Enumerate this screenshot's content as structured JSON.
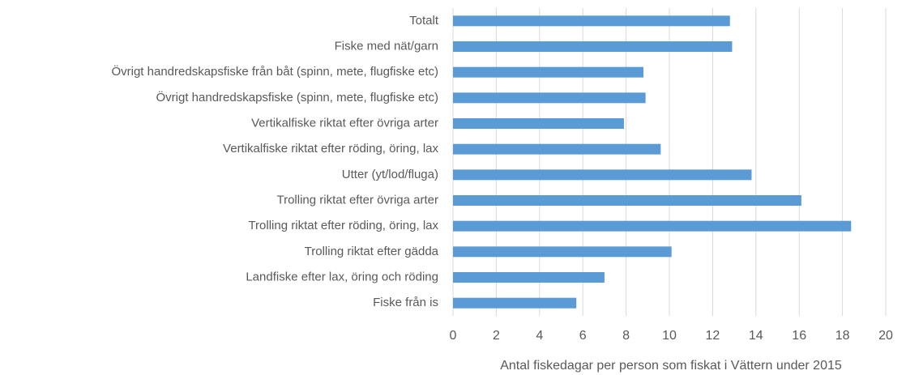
{
  "chart_data": {
    "type": "barh",
    "x_label": "Antal fiskedagar per person som fiskat i Vättern under 2015",
    "categories": [
      "Totalt",
      "Fiske med nät/garn",
      "Övrigt handredskapsfiske från båt (spinn, mete, flugfiske etc)",
      "Övrigt handredskapsfiske (spinn, mete, flugfiske etc)",
      "Vertikalfiske riktat efter övriga arter",
      "Vertikalfiske riktat efter röding, öring, lax",
      "Utter (yt/lod/fluga)",
      "Trolling riktat efter övriga arter",
      "Trolling riktat efter röding, öring, lax",
      "Trolling riktat efter gädda",
      "Landfiske efter lax, öring och röding",
      "Fiske från is"
    ],
    "values": [
      12.8,
      12.9,
      8.8,
      8.9,
      7.9,
      9.6,
      13.8,
      16.1,
      18.4,
      10.1,
      7.0,
      5.7
    ],
    "color": "#5b9bd5",
    "xlim": [
      0,
      20
    ],
    "xticks": [
      0,
      2,
      4,
      6,
      8,
      10,
      12,
      14,
      16,
      18,
      20
    ],
    "grid": true
  }
}
